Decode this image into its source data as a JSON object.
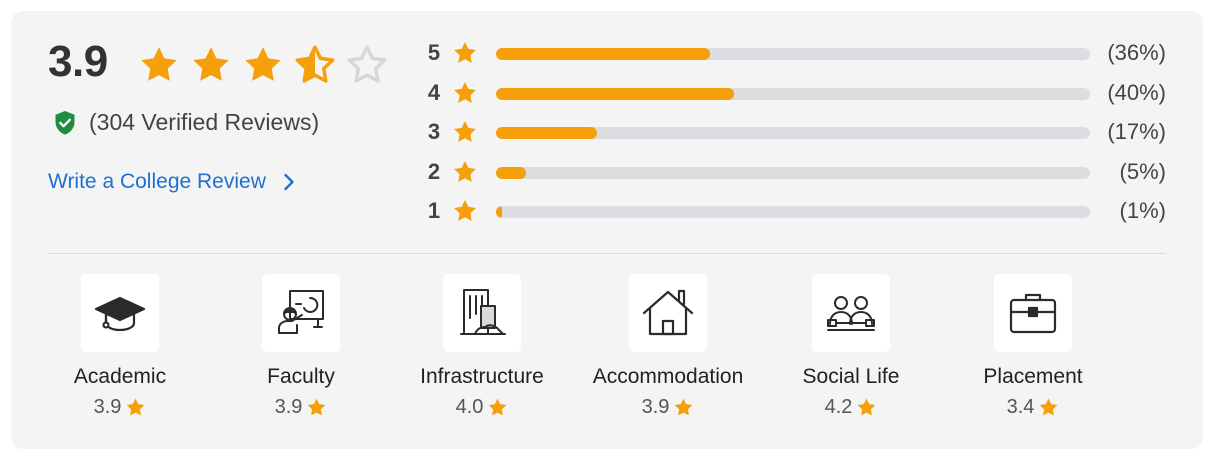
{
  "overall": {
    "score": "3.9",
    "stars": [
      1,
      1,
      1,
      0.5,
      0
    ],
    "verified_text": "(304 Verified Reviews)",
    "write_review_label": "Write a College Review"
  },
  "distribution": [
    {
      "stars": "5",
      "percent": 36,
      "label": "(36%)"
    },
    {
      "stars": "4",
      "percent": 40,
      "label": "(40%)"
    },
    {
      "stars": "3",
      "percent": 17,
      "label": "(17%)"
    },
    {
      "stars": "2",
      "percent": 5,
      "label": "(5%)"
    },
    {
      "stars": "1",
      "percent": 1,
      "label": "(1%)"
    }
  ],
  "categories": [
    {
      "label": "Academic",
      "rating": "3.9",
      "icon": "graduation-cap-icon"
    },
    {
      "label": "Faculty",
      "rating": "3.9",
      "icon": "teacher-board-icon"
    },
    {
      "label": "Infrastructure",
      "rating": "4.0",
      "icon": "building-icon"
    },
    {
      "label": "Accommodation",
      "rating": "3.9",
      "icon": "house-icon"
    },
    {
      "label": "Social Life",
      "rating": "4.2",
      "icon": "people-icon"
    },
    {
      "label": "Placement",
      "rating": "3.4",
      "icon": "briefcase-icon"
    }
  ],
  "colors": {
    "star": "#f5a00b",
    "star_empty": "#d6d7db",
    "link": "#1f6fd1",
    "shield": "#1e8e3e",
    "bar_track": "#dcdde1"
  }
}
